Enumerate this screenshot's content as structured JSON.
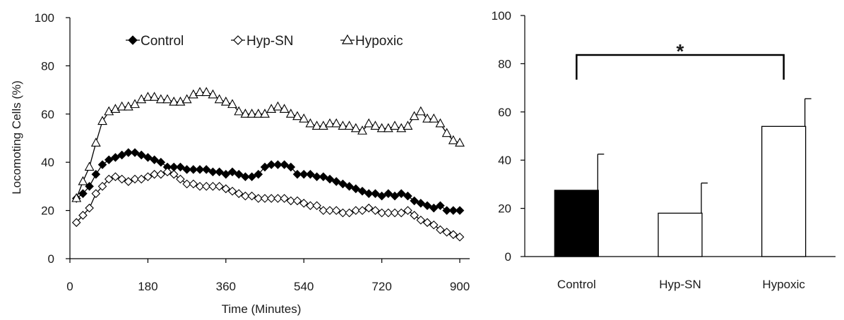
{
  "chart_data": [
    {
      "type": "line",
      "title": "",
      "xlabel": "Time (Minutes)",
      "ylabel": "Locomoting Cells (%)",
      "xlim": [
        0,
        900
      ],
      "ylim": [
        0,
        100
      ],
      "xticks": [
        0,
        180,
        360,
        540,
        720,
        900
      ],
      "yticks": [
        0,
        20,
        40,
        60,
        80,
        100
      ],
      "grid": false,
      "legend": "top",
      "x": [
        15,
        30,
        45,
        60,
        75,
        90,
        105,
        120,
        135,
        150,
        165,
        180,
        195,
        210,
        225,
        240,
        255,
        270,
        285,
        300,
        315,
        330,
        345,
        360,
        375,
        390,
        405,
        420,
        435,
        450,
        465,
        480,
        495,
        510,
        525,
        540,
        555,
        570,
        585,
        600,
        615,
        630,
        645,
        660,
        675,
        690,
        705,
        720,
        735,
        750,
        765,
        780,
        795,
        810,
        825,
        840,
        855,
        870,
        885,
        900
      ],
      "series": [
        {
          "name": "Control",
          "marker": "filled-diamond",
          "color": "#000000",
          "values": [
            25,
            27,
            30,
            35,
            39,
            41,
            42,
            43,
            44,
            44,
            43,
            42,
            41,
            40,
            38,
            38,
            38,
            37,
            37,
            37,
            37,
            36,
            36,
            35,
            36,
            35,
            34,
            34,
            35,
            38,
            39,
            39,
            39,
            38,
            35,
            35,
            35,
            34,
            34,
            33,
            32,
            31,
            30,
            29,
            28,
            27,
            27,
            26,
            27,
            26,
            27,
            26,
            24,
            23,
            22,
            21,
            22,
            20,
            20,
            20
          ]
        },
        {
          "name": "Hyp-SN",
          "marker": "open-diamond",
          "color": "#000000",
          "values": [
            15,
            18,
            21,
            27,
            30,
            33,
            34,
            33,
            32,
            33,
            33,
            34,
            35,
            35,
            36,
            35,
            33,
            31,
            31,
            30,
            30,
            30,
            30,
            29,
            28,
            27,
            26,
            26,
            25,
            25,
            25,
            25,
            25,
            24,
            24,
            23,
            22,
            22,
            20,
            20,
            20,
            19,
            19,
            20,
            20,
            21,
            20,
            19,
            19,
            19,
            19,
            20,
            18,
            16,
            15,
            14,
            12,
            11,
            10,
            9
          ]
        },
        {
          "name": "Hypoxic",
          "marker": "open-triangle",
          "color": "#000000",
          "values": [
            25,
            32,
            38,
            48,
            57,
            61,
            62,
            63,
            63,
            64,
            66,
            67,
            67,
            66,
            66,
            65,
            65,
            66,
            68,
            69,
            69,
            68,
            66,
            65,
            64,
            61,
            60,
            60,
            60,
            60,
            62,
            63,
            62,
            60,
            59,
            58,
            56,
            55,
            55,
            56,
            56,
            55,
            55,
            54,
            53,
            56,
            55,
            54,
            54,
            55,
            54,
            55,
            59,
            61,
            58,
            58,
            56,
            52,
            49,
            48
          ]
        }
      ]
    },
    {
      "type": "bar",
      "title": "",
      "xlabel": "",
      "ylabel": "",
      "ylim": [
        0,
        100
      ],
      "yticks": [
        0,
        20,
        40,
        60,
        80,
        100
      ],
      "grid": false,
      "categories": [
        "Control",
        "Hyp-SN",
        "Hypoxic"
      ],
      "values": [
        27.5,
        18,
        54
      ],
      "errors": [
        15,
        12.5,
        11.5
      ],
      "fills": [
        "#000000",
        "#ffffff",
        "#ffffff"
      ],
      "significance": {
        "from": 0,
        "to": 2,
        "label": "*"
      }
    }
  ]
}
